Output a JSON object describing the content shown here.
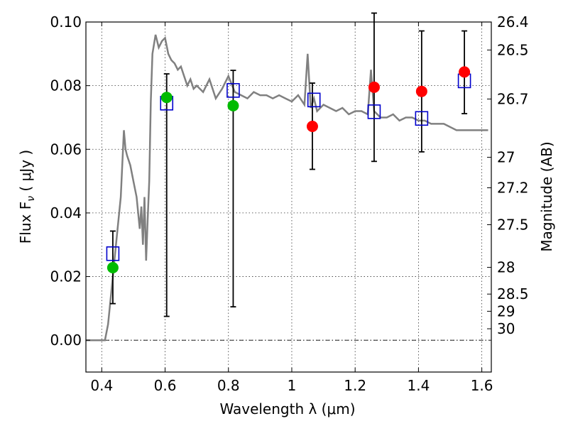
{
  "chart_data": {
    "type": "scatter",
    "xlabel": "Wavelength  λ (μm)",
    "ylabel": "Flux  F",
    "ylabel_subscript": "ν",
    "ylabel_unit": "  ( μJy )",
    "y2label": "Magnitude (AB)",
    "xlim": [
      0.35,
      1.63
    ],
    "ylim": [
      -0.01,
      0.1
    ],
    "grid": true,
    "xticks": [
      0.4,
      0.6,
      0.8,
      1.0,
      1.2,
      1.4,
      1.6
    ],
    "xtick_labels": [
      "0.4",
      "0.6",
      "0.8",
      "1",
      "1.2",
      "1.4",
      "1.6"
    ],
    "yticks": [
      0.0,
      0.02,
      0.04,
      0.06,
      0.08,
      0.1
    ],
    "ytick_labels": [
      "0.00",
      "0.02",
      "0.04",
      "0.06",
      "0.08",
      "0.10"
    ],
    "mag_ticks": [
      {
        "label": "26.4",
        "flux": 0.1
      },
      {
        "label": "26.5",
        "flux": 0.0912
      },
      {
        "label": "26.7",
        "flux": 0.0758
      },
      {
        "label": "27",
        "flux": 0.0575
      },
      {
        "label": "27.2",
        "flux": 0.0479
      },
      {
        "label": "27.5",
        "flux": 0.0363
      },
      {
        "label": "28",
        "flux": 0.0229
      },
      {
        "label": "28.5",
        "flux": 0.0145
      },
      {
        "label": "29",
        "flux": 0.0091
      },
      {
        "label": "30",
        "flux": 0.0036
      }
    ],
    "colors": {
      "sed": "#808080",
      "model_box": "#0000cc",
      "detection": "#00bb00",
      "upper_limit": "#ff0000",
      "errorbar": "#000000"
    },
    "model_sed": {
      "x": [
        0.35,
        0.39,
        0.41,
        0.42,
        0.43,
        0.44,
        0.45,
        0.46,
        0.47,
        0.475,
        0.48,
        0.49,
        0.5,
        0.51,
        0.52,
        0.525,
        0.53,
        0.535,
        0.54,
        0.545,
        0.55,
        0.555,
        0.56,
        0.57,
        0.58,
        0.59,
        0.6,
        0.61,
        0.62,
        0.63,
        0.64,
        0.65,
        0.66,
        0.67,
        0.68,
        0.69,
        0.7,
        0.72,
        0.74,
        0.76,
        0.78,
        0.8,
        0.82,
        0.84,
        0.86,
        0.88,
        0.9,
        0.92,
        0.94,
        0.96,
        0.98,
        1.0,
        1.02,
        1.04,
        1.05,
        1.06,
        1.07,
        1.08,
        1.1,
        1.12,
        1.14,
        1.16,
        1.18,
        1.2,
        1.22,
        1.24,
        1.25,
        1.26,
        1.27,
        1.28,
        1.3,
        1.32,
        1.34,
        1.36,
        1.38,
        1.4,
        1.42,
        1.44,
        1.46,
        1.48,
        1.5,
        1.52,
        1.54,
        1.56,
        1.58,
        1.6,
        1.62
      ],
      "y": [
        0.0,
        0.0,
        0.0,
        0.005,
        0.015,
        0.025,
        0.035,
        0.045,
        0.066,
        0.06,
        0.058,
        0.055,
        0.05,
        0.045,
        0.035,
        0.042,
        0.03,
        0.045,
        0.025,
        0.038,
        0.05,
        0.075,
        0.09,
        0.096,
        0.092,
        0.094,
        0.095,
        0.09,
        0.088,
        0.087,
        0.085,
        0.086,
        0.083,
        0.08,
        0.082,
        0.079,
        0.08,
        0.078,
        0.082,
        0.076,
        0.079,
        0.083,
        0.078,
        0.077,
        0.076,
        0.078,
        0.077,
        0.077,
        0.076,
        0.077,
        0.076,
        0.075,
        0.077,
        0.074,
        0.09,
        0.073,
        0.076,
        0.072,
        0.074,
        0.073,
        0.072,
        0.073,
        0.071,
        0.072,
        0.072,
        0.071,
        0.085,
        0.072,
        0.071,
        0.07,
        0.07,
        0.071,
        0.069,
        0.07,
        0.07,
        0.069,
        0.069,
        0.068,
        0.068,
        0.068,
        0.067,
        0.066,
        0.066,
        0.066,
        0.066,
        0.066,
        0.066
      ]
    },
    "model_points": {
      "x": [
        0.435,
        0.605,
        0.815,
        1.07,
        1.26,
        1.41,
        1.545
      ],
      "y": [
        0.0272,
        0.0745,
        0.0785,
        0.0755,
        0.0718,
        0.0697,
        0.0815
      ]
    },
    "detections": {
      "x": [
        0.435,
        0.605,
        0.815
      ],
      "y": [
        0.0228,
        0.0763,
        0.0737
      ],
      "yerr_low": [
        0.0115,
        0.0075,
        0.0105
      ],
      "yerr_high": [
        0.0343,
        0.0837,
        0.0848
      ]
    },
    "upper_limits": {
      "x": [
        1.065,
        1.26,
        1.41,
        1.545
      ],
      "y": [
        0.0672,
        0.0795,
        0.0782,
        0.0843
      ],
      "yerr_low": [
        0.0537,
        0.0562,
        0.0592,
        0.0712
      ],
      "yerr_high": [
        0.0808,
        0.1028,
        0.0972,
        0.0972
      ]
    }
  }
}
